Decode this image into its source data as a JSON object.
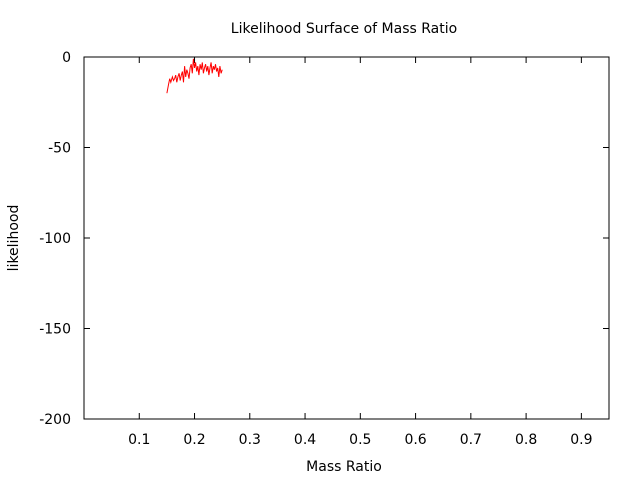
{
  "chart_data": {
    "type": "line",
    "title": "Likelihood Surface of Mass Ratio",
    "xlabel": "Mass Ratio",
    "ylabel": "likelihood",
    "xlim": [
      0.0,
      0.95
    ],
    "ylim": [
      -200,
      0
    ],
    "xticks": [
      0.1,
      0.2,
      0.3,
      0.4,
      0.5,
      0.6,
      0.7,
      0.8,
      0.9
    ],
    "xtick_labels": [
      "0.1",
      "0.2",
      "0.3",
      "0.4",
      "0.5",
      "0.6",
      "0.7",
      "0.8",
      "0.9"
    ],
    "yticks": [
      0,
      -50,
      -100,
      -150,
      -200
    ],
    "ytick_labels": [
      "0",
      "-50",
      "-100",
      "-150",
      "-200"
    ],
    "grid": false,
    "series": [
      {
        "color": "#ff0000",
        "x": [
          0.15,
          0.153,
          0.155,
          0.157,
          0.16,
          0.162,
          0.164,
          0.166,
          0.168,
          0.17,
          0.172,
          0.174,
          0.176,
          0.178,
          0.18,
          0.182,
          0.184,
          0.186,
          0.188,
          0.19,
          0.192,
          0.194,
          0.196,
          0.198,
          0.2,
          0.202,
          0.204,
          0.206,
          0.208,
          0.21,
          0.212,
          0.214,
          0.216,
          0.218,
          0.22,
          0.222,
          0.224,
          0.226,
          0.228,
          0.23,
          0.232,
          0.234,
          0.236,
          0.238,
          0.24,
          0.242,
          0.244,
          0.246,
          0.248,
          0.25
        ],
        "y": [
          -20,
          -15,
          -12,
          -14,
          -11,
          -13,
          -12,
          -10,
          -14,
          -11,
          -9,
          -13,
          -10,
          -8,
          -14,
          -5,
          -11,
          -7,
          -9,
          -12,
          -6,
          -4,
          -9,
          -1,
          -6,
          -3,
          -8,
          -5,
          -10,
          -4,
          -7,
          -3,
          -9,
          -6,
          -4,
          -8,
          -5,
          -10,
          -6,
          -3,
          -9,
          -5,
          -7,
          -4,
          -8,
          -6,
          -11,
          -5,
          -9,
          -7
        ]
      }
    ]
  }
}
